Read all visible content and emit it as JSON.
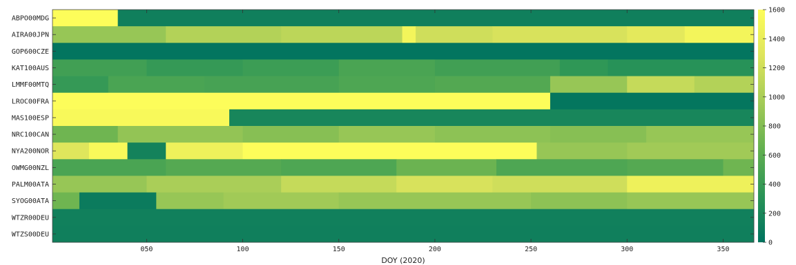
{
  "chart_data": {
    "type": "heatmap",
    "xlabel": "DOY (2020)",
    "x_ticks": [
      "050",
      "100",
      "150",
      "200",
      "250",
      "300",
      "350"
    ],
    "x_tick_values": [
      50,
      100,
      150,
      200,
      250,
      300,
      350
    ],
    "xlim": [
      1,
      366
    ],
    "rows": [
      "ABPO00MDG",
      "AIRA00JPN",
      "GOP600CZE",
      "KAT100AUS",
      "LMMF00MTQ",
      "LROC00FRA",
      "MAS100ESP",
      "NRC100CAN",
      "NYA200NOR",
      "OWMG00NZL",
      "PALM00ATA",
      "SYOG00ATA",
      "WTZR00DEU",
      "WTZS00DEU"
    ],
    "colorbar": {
      "ticks": [
        0,
        200,
        400,
        600,
        800,
        1000,
        1200,
        1400,
        1600
      ],
      "range": [
        0,
        1600
      ],
      "colormap": [
        "#00735f",
        "#2a9457",
        "#63b050",
        "#a3cb57",
        "#dde45c",
        "#fdfd5a"
      ]
    },
    "segments": [
      [
        [
          1,
          35,
          1600
        ],
        [
          35,
          366,
          120
        ]
      ],
      [
        [
          1,
          60,
          900
        ],
        [
          60,
          120,
          1050
        ],
        [
          120,
          183,
          1100
        ],
        [
          183,
          190,
          1500
        ],
        [
          190,
          230,
          1200
        ],
        [
          230,
          300,
          1250
        ],
        [
          300,
          330,
          1350
        ],
        [
          330,
          366,
          1500
        ]
      ],
      [
        [
          1,
          366,
          20
        ]
      ],
      [
        [
          1,
          50,
          450
        ],
        [
          50,
          100,
          380
        ],
        [
          100,
          150,
          420
        ],
        [
          150,
          200,
          500
        ],
        [
          200,
          265,
          450
        ],
        [
          265,
          290,
          350
        ],
        [
          290,
          366,
          300
        ]
      ],
      [
        [
          1,
          30,
          380
        ],
        [
          30,
          80,
          500
        ],
        [
          80,
          150,
          480
        ],
        [
          150,
          200,
          520
        ],
        [
          200,
          260,
          550
        ],
        [
          260,
          300,
          900
        ],
        [
          300,
          335,
          1150
        ],
        [
          335,
          366,
          1050
        ]
      ],
      [
        [
          1,
          260,
          1600
        ],
        [
          260,
          366,
          30
        ]
      ],
      [
        [
          1,
          93,
          1550
        ],
        [
          93,
          366,
          180
        ]
      ],
      [
        [
          1,
          35,
          700
        ],
        [
          35,
          100,
          880
        ],
        [
          100,
          150,
          820
        ],
        [
          150,
          200,
          900
        ],
        [
          200,
          260,
          850
        ],
        [
          260,
          310,
          820
        ],
        [
          310,
          366,
          900
        ]
      ],
      [
        [
          1,
          20,
          1300
        ],
        [
          20,
          40,
          1550
        ],
        [
          40,
          60,
          150
        ],
        [
          60,
          100,
          1450
        ],
        [
          100,
          253,
          1600
        ],
        [
          253,
          300,
          900
        ],
        [
          300,
          366,
          950
        ]
      ],
      [
        [
          1,
          60,
          500
        ],
        [
          60,
          120,
          560
        ],
        [
          120,
          180,
          520
        ],
        [
          180,
          232,
          680
        ],
        [
          232,
          300,
          520
        ],
        [
          300,
          350,
          560
        ],
        [
          350,
          366,
          700
        ]
      ],
      [
        [
          1,
          50,
          900
        ],
        [
          50,
          120,
          1000
        ],
        [
          120,
          180,
          1150
        ],
        [
          180,
          230,
          1250
        ],
        [
          230,
          300,
          1200
        ],
        [
          300,
          366,
          1450
        ]
      ],
      [
        [
          1,
          15,
          700
        ],
        [
          15,
          55,
          80
        ],
        [
          55,
          90,
          900
        ],
        [
          90,
          150,
          950
        ],
        [
          150,
          250,
          900
        ],
        [
          250,
          300,
          850
        ],
        [
          300,
          366,
          900
        ]
      ],
      [
        [
          1,
          366,
          130
        ]
      ],
      [
        [
          1,
          366,
          120
        ]
      ]
    ]
  }
}
